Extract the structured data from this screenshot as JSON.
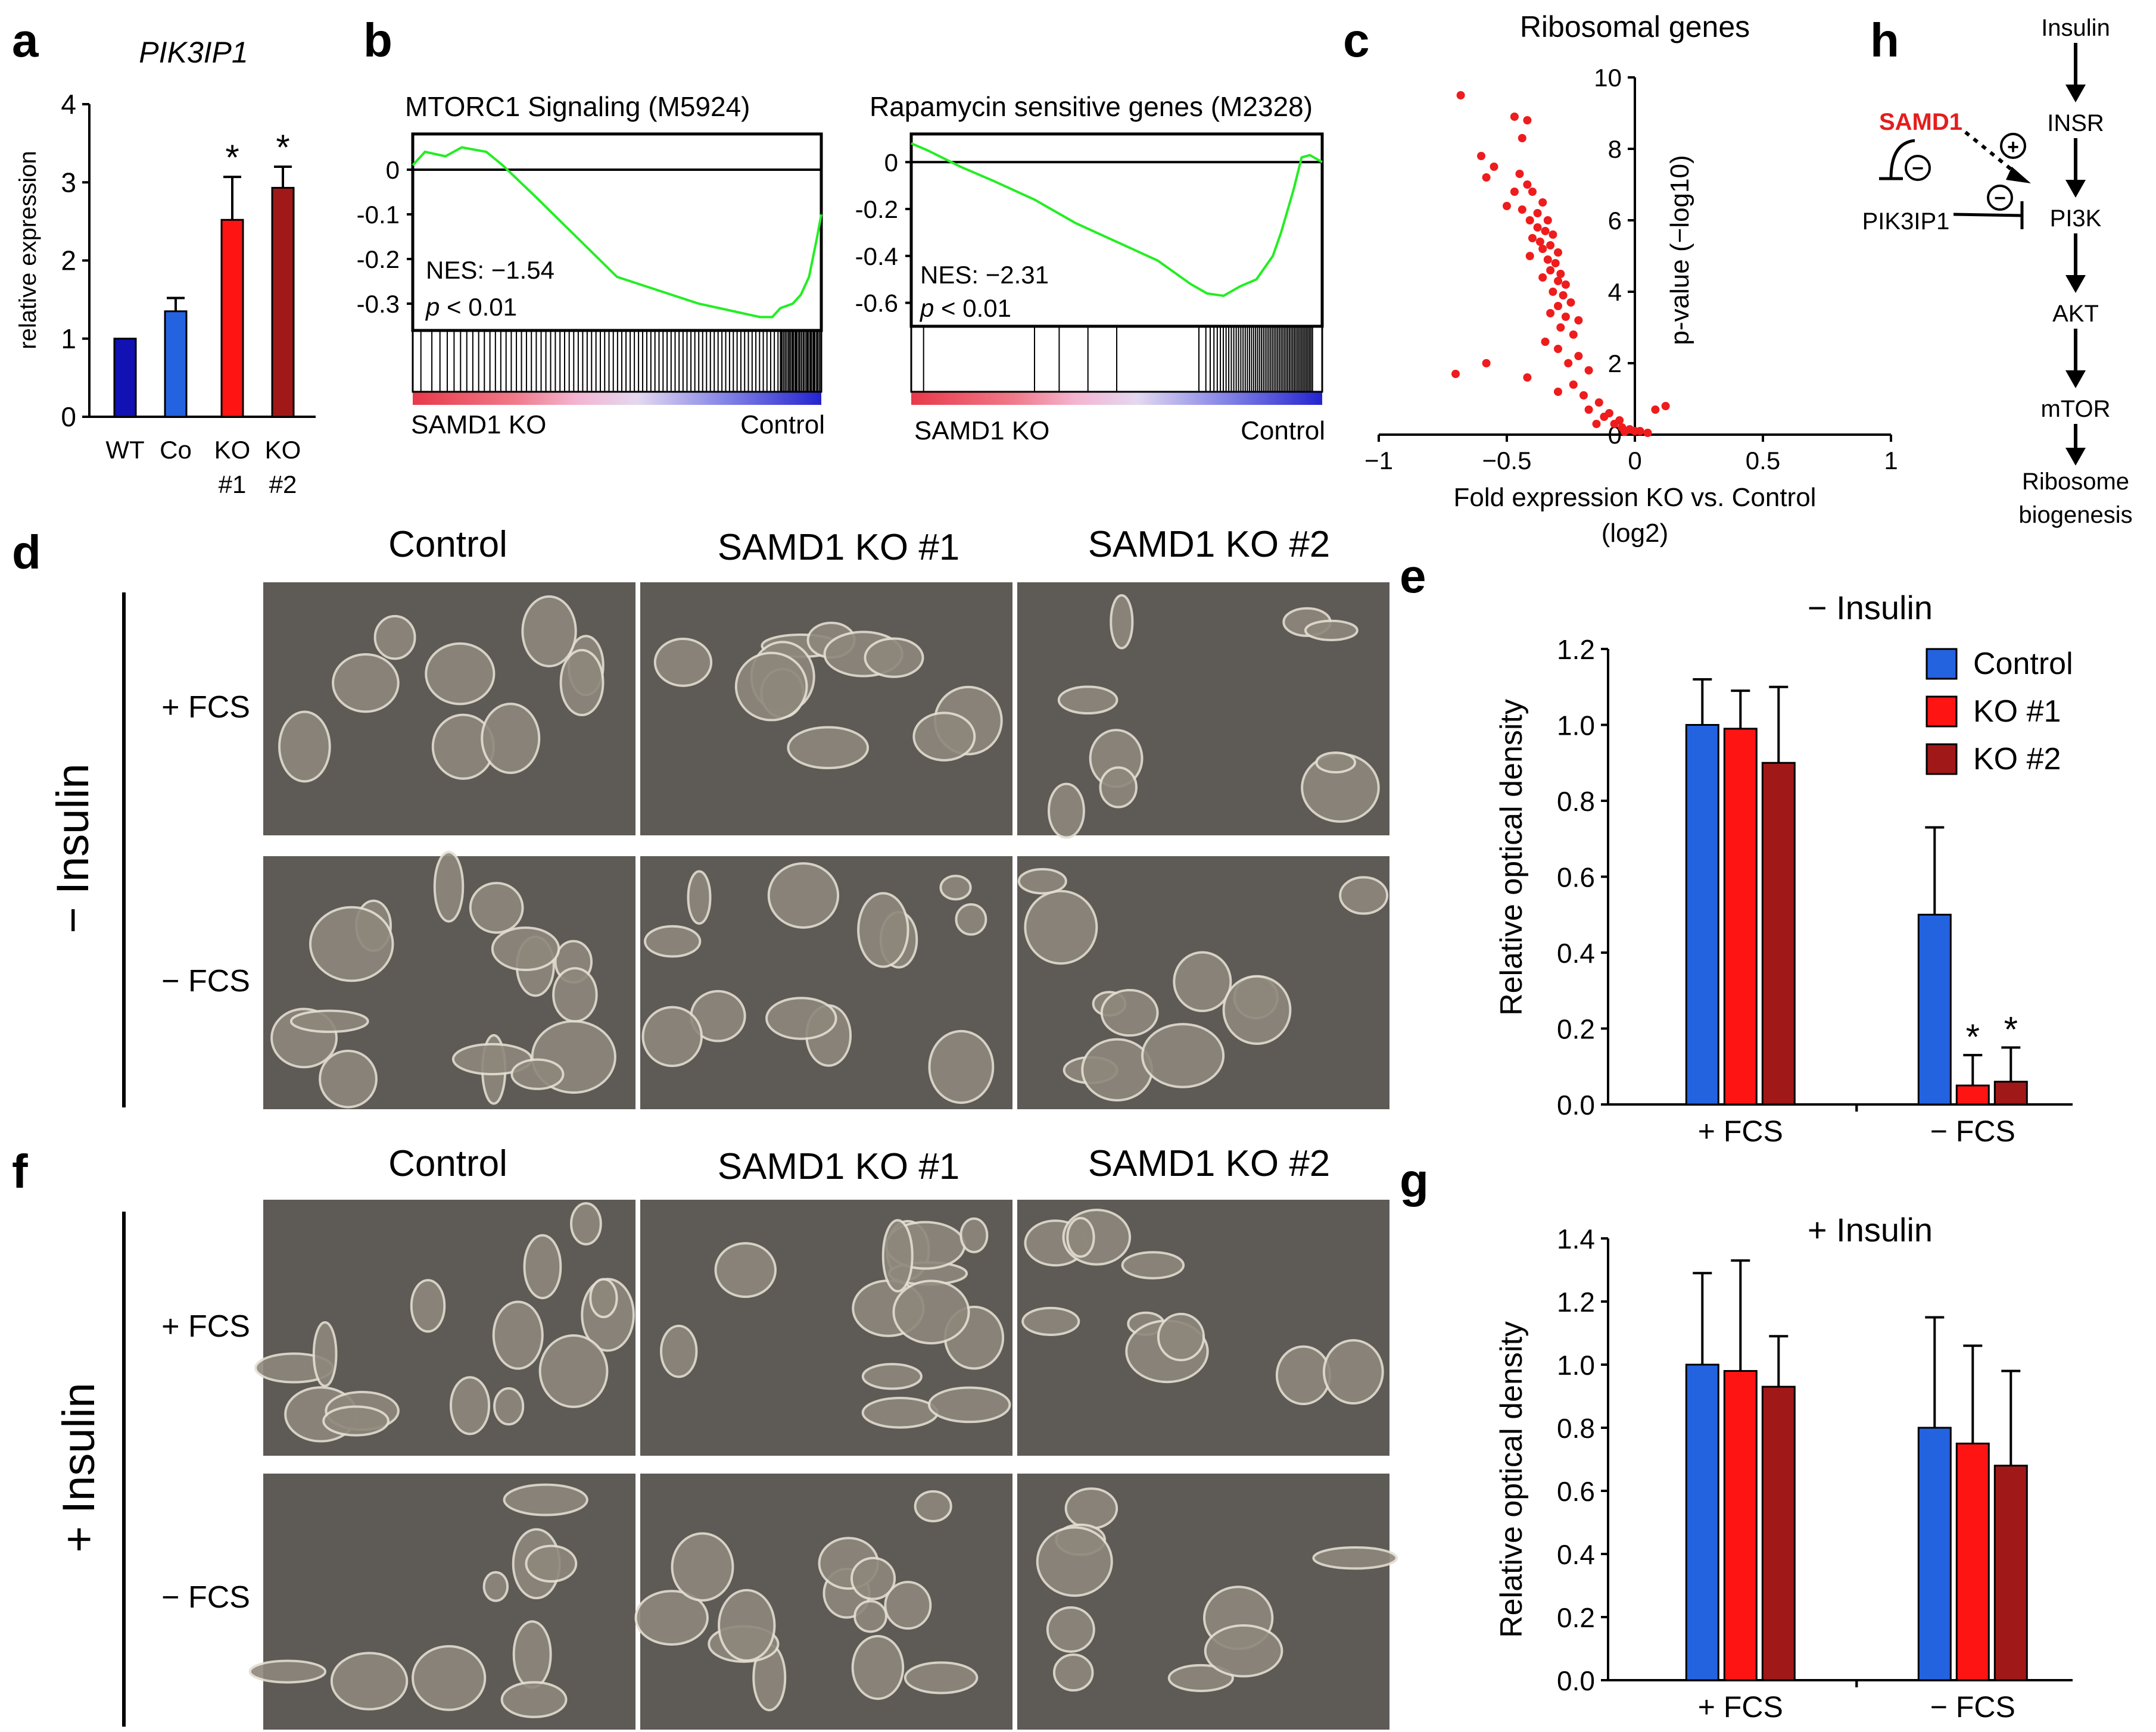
{
  "colors": {
    "control": "#2463e0",
    "ko1": "#ff1414",
    "ko2": "#a11818",
    "wt": "#1212b4",
    "gsea_line": "#22ee22",
    "volcano": "#ee1c1c",
    "samd1": "#e51d1d"
  },
  "panels": {
    "a": "a",
    "b": "b",
    "c": "c",
    "d": "d",
    "e": "e",
    "f": "f",
    "g": "g",
    "h": "h"
  },
  "chart_data": [
    {
      "id": "a",
      "type": "bar",
      "title": "PIK3IP1",
      "ylabel": "relative expression",
      "ylim": [
        0,
        4
      ],
      "yticks": [
        "0",
        "1",
        "2",
        "3",
        "4"
      ],
      "categories": [
        [
          "WT",
          ""
        ],
        [
          "Co",
          ""
        ],
        [
          "KO",
          "#1"
        ],
        [
          "KO",
          "#2"
        ]
      ],
      "values": [
        1.0,
        1.35,
        2.52,
        2.93
      ],
      "errors": [
        0,
        0.17,
        0.55,
        0.27
      ],
      "annotations": [
        "",
        "",
        "*",
        "*"
      ],
      "color_keys": [
        "wt",
        "control",
        "ko1",
        "ko2"
      ]
    },
    {
      "id": "b1",
      "type": "line",
      "title": "MTORC1 Signaling (M5924)",
      "nes": "NES: −1.54",
      "pval_p": "p",
      "pval_rest": " < 0.01",
      "ylim": [
        -0.36,
        0.08
      ],
      "yticks": [
        "0",
        "-0.1",
        "-0.2",
        "-0.3"
      ],
      "ytick_values": [
        0,
        -0.1,
        -0.2,
        -0.3
      ],
      "x": [
        0,
        0.03,
        0.08,
        0.12,
        0.18,
        0.22,
        0.3,
        0.4,
        0.5,
        0.6,
        0.7,
        0.8,
        0.85,
        0.88,
        0.9,
        0.93,
        0.95,
        0.97,
        0.99,
        1.0
      ],
      "y": [
        0.01,
        0.04,
        0.03,
        0.05,
        0.04,
        0.01,
        -0.06,
        -0.15,
        -0.24,
        -0.27,
        -0.3,
        -0.32,
        -0.33,
        -0.33,
        -0.31,
        -0.3,
        -0.28,
        -0.24,
        -0.15,
        -0.1
      ],
      "gradient_left": "SAMD1 KO",
      "gradient_right": "Control"
    },
    {
      "id": "b2",
      "type": "line",
      "title": "Rapamycin sensitive genes (M2328)",
      "nes": "NES: −2.31",
      "pval_p": "p",
      "pval_rest": " < 0.01",
      "ylim": [
        -0.7,
        0.12
      ],
      "yticks": [
        "0",
        "-0.2",
        "-0.4",
        "-0.6"
      ],
      "ytick_values": [
        0,
        -0.2,
        -0.4,
        -0.6
      ],
      "x": [
        0,
        0.04,
        0.12,
        0.2,
        0.3,
        0.4,
        0.5,
        0.6,
        0.68,
        0.72,
        0.76,
        0.8,
        0.84,
        0.88,
        0.9,
        0.93,
        0.95,
        0.97,
        1.0
      ],
      "y": [
        0.08,
        0.05,
        -0.02,
        -0.08,
        -0.16,
        -0.26,
        -0.34,
        -0.42,
        -0.52,
        -0.56,
        -0.57,
        -0.53,
        -0.5,
        -0.4,
        -0.3,
        -0.12,
        0.02,
        0.03,
        0.0
      ],
      "gradient_left": "SAMD1 KO",
      "gradient_right": "Control"
    },
    {
      "id": "c",
      "type": "scatter",
      "title": "Ribosomal genes",
      "xlabel": "Fold expression KO vs. Control",
      "xlabel2": "(log2)",
      "ylabel": "p-value (−log10)",
      "xlim": [
        -1,
        1
      ],
      "ylim": [
        0,
        10
      ],
      "xticks": [
        "−1",
        "−0.5",
        "0",
        "0.5",
        "1"
      ],
      "xtick_values": [
        -1,
        -0.5,
        0,
        0.5,
        1
      ],
      "yticks": [
        "0",
        "2",
        "4",
        "6",
        "8",
        "10"
      ],
      "ytick_values": [
        0,
        2,
        4,
        6,
        8,
        10
      ],
      "points": [
        [
          -0.68,
          9.5
        ],
        [
          -0.47,
          8.9
        ],
        [
          -0.42,
          8.8
        ],
        [
          -0.44,
          8.3
        ],
        [
          -0.55,
          7.5
        ],
        [
          -0.6,
          7.8
        ],
        [
          -0.58,
          7.2
        ],
        [
          -0.45,
          7.3
        ],
        [
          -0.42,
          7.0
        ],
        [
          -0.47,
          6.8
        ],
        [
          -0.4,
          6.8
        ],
        [
          -0.36,
          6.5
        ],
        [
          -0.44,
          6.3
        ],
        [
          -0.5,
          6.4
        ],
        [
          -0.38,
          6.2
        ],
        [
          -0.41,
          6.0
        ],
        [
          -0.34,
          6.0
        ],
        [
          -0.38,
          5.8
        ],
        [
          -0.35,
          5.7
        ],
        [
          -0.32,
          5.6
        ],
        [
          -0.4,
          5.5
        ],
        [
          -0.37,
          5.4
        ],
        [
          -0.33,
          5.3
        ],
        [
          -0.36,
          5.2
        ],
        [
          -0.3,
          5.1
        ],
        [
          -0.41,
          5.0
        ],
        [
          -0.34,
          4.9
        ],
        [
          -0.31,
          4.8
        ],
        [
          -0.33,
          4.6
        ],
        [
          -0.29,
          4.5
        ],
        [
          -0.36,
          4.4
        ],
        [
          -0.3,
          4.3
        ],
        [
          -0.27,
          4.2
        ],
        [
          -0.32,
          4.0
        ],
        [
          -0.28,
          3.9
        ],
        [
          -0.25,
          3.7
        ],
        [
          -0.3,
          3.6
        ],
        [
          -0.33,
          3.4
        ],
        [
          -0.27,
          3.3
        ],
        [
          -0.22,
          3.2
        ],
        [
          -0.29,
          3.0
        ],
        [
          -0.24,
          2.8
        ],
        [
          -0.35,
          2.6
        ],
        [
          -0.3,
          2.4
        ],
        [
          -0.22,
          2.2
        ],
        [
          -0.26,
          2.0
        ],
        [
          -0.18,
          1.8
        ],
        [
          -0.42,
          1.6
        ],
        [
          -0.24,
          1.4
        ],
        [
          -0.3,
          1.2
        ],
        [
          -0.2,
          1.1
        ],
        [
          -0.14,
          0.9
        ],
        [
          -0.18,
          0.7
        ],
        [
          -0.12,
          0.5
        ],
        [
          -0.08,
          0.3
        ],
        [
          -0.05,
          0.2
        ],
        [
          -0.02,
          0.15
        ],
        [
          0.0,
          0.1
        ],
        [
          0.02,
          0.1
        ],
        [
          -0.04,
          0.08
        ],
        [
          0.08,
          0.7
        ],
        [
          0.12,
          0.8
        ],
        [
          -0.58,
          2.0
        ],
        [
          -0.7,
          1.7
        ],
        [
          -0.1,
          0.6
        ],
        [
          -0.15,
          0.3
        ],
        [
          0.05,
          0.05
        ],
        [
          -0.06,
          0.4
        ]
      ]
    },
    {
      "id": "e",
      "type": "bar",
      "title": "− Insulin",
      "ylabel": "Relative optical density",
      "ylim": [
        0,
        1.2
      ],
      "yticks": [
        "0.0",
        "0.2",
        "0.4",
        "0.6",
        "0.8",
        "1.0",
        "1.2"
      ],
      "categories": [
        "+ FCS",
        "− FCS"
      ],
      "series": [
        {
          "name": "Control",
          "color_key": "control",
          "values": [
            1.0,
            0.5
          ],
          "errors": [
            0.12,
            0.23
          ],
          "annotations": [
            "",
            ""
          ]
        },
        {
          "name": "KO #1",
          "color_key": "ko1",
          "values": [
            0.99,
            0.05
          ],
          "errors": [
            0.1,
            0.08
          ],
          "annotations": [
            "",
            "*"
          ]
        },
        {
          "name": "KO #2",
          "color_key": "ko2",
          "values": [
            0.9,
            0.06
          ],
          "errors": [
            0.2,
            0.09
          ],
          "annotations": [
            "",
            "*"
          ]
        }
      ],
      "legend": "top-right"
    },
    {
      "id": "g",
      "type": "bar",
      "title": "+ Insulin",
      "ylabel": "Relative optical density",
      "ylim": [
        0,
        1.4
      ],
      "yticks": [
        "0.0",
        "0.2",
        "0.4",
        "0.6",
        "0.8",
        "1.0",
        "1.2",
        "1.4"
      ],
      "categories": [
        "+ FCS",
        "− FCS"
      ],
      "series": [
        {
          "name": "Control",
          "color_key": "control",
          "values": [
            1.0,
            0.8
          ],
          "errors": [
            0.29,
            0.35
          ],
          "annotations": [
            "",
            ""
          ]
        },
        {
          "name": "KO #1",
          "color_key": "ko1",
          "values": [
            0.98,
            0.75
          ],
          "errors": [
            0.35,
            0.31
          ],
          "annotations": [
            "",
            ""
          ]
        },
        {
          "name": "KO #2",
          "color_key": "ko2",
          "values": [
            0.93,
            0.68
          ],
          "errors": [
            0.16,
            0.3
          ],
          "annotations": [
            "",
            ""
          ]
        }
      ]
    }
  ],
  "micro": {
    "col_headers": [
      "Control",
      "SAMD1 KO #1",
      "SAMD1 KO #2"
    ],
    "row_headers": [
      "+ FCS",
      "− FCS"
    ],
    "group_d": "− Insulin",
    "group_f": "+ Insulin"
  },
  "pathway": {
    "chain": [
      "Insulin",
      "INSR",
      "PI3K",
      "AKT",
      "mTOR",
      "Ribosome",
      "biogenesis"
    ],
    "samd1": "SAMD1",
    "pik3ip1": "PIK3IP1",
    "plus_symbol": "+",
    "minus_symbol": "−"
  }
}
